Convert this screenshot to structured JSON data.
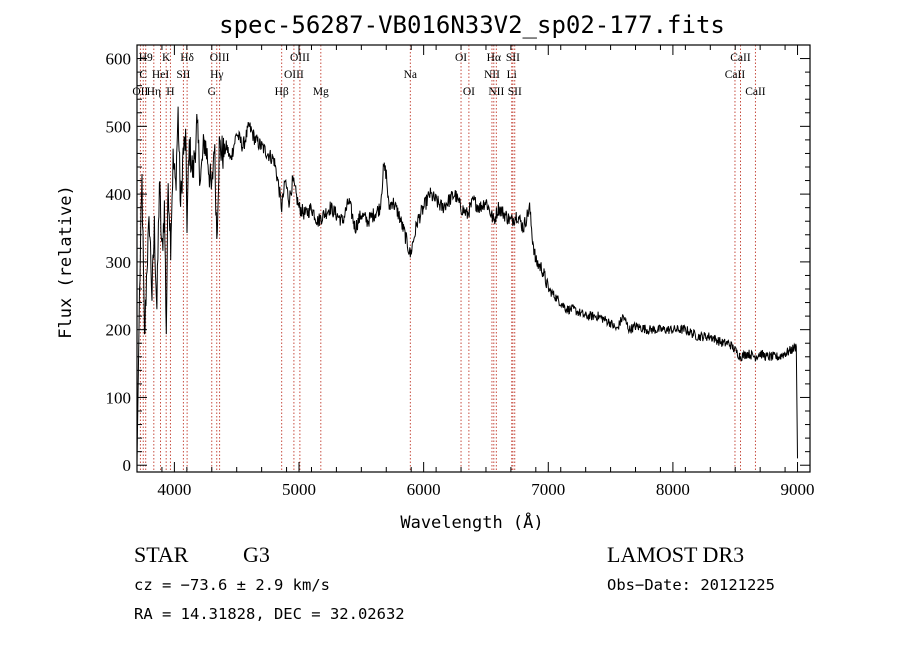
{
  "chart_data": {
    "type": "line",
    "title": "spec-56287-VB016N33V2_sp02-177.fits",
    "xlabel": "Wavelength (Å)",
    "ylabel": "Flux (relative)",
    "xlim": [
      3700,
      9100
    ],
    "ylim": [
      -10,
      620
    ],
    "x_ticks": [
      4000,
      5000,
      6000,
      7000,
      8000,
      9000
    ],
    "y_ticks": [
      0,
      100,
      200,
      300,
      400,
      500,
      600
    ],
    "spectrum": {
      "x": [
        3700,
        3720,
        3740,
        3760,
        3780,
        3800,
        3820,
        3840,
        3860,
        3880,
        3900,
        3920,
        3935,
        3950,
        3970,
        3990,
        4010,
        4030,
        4050,
        4070,
        4090,
        4101,
        4120,
        4150,
        4180,
        4210,
        4240,
        4270,
        4300,
        4320,
        4340,
        4360,
        4390,
        4420,
        4450,
        4500,
        4550,
        4600,
        4650,
        4700,
        4750,
        4800,
        4830,
        4861,
        4890,
        4920,
        4950,
        5000,
        5050,
        5100,
        5150,
        5200,
        5250,
        5300,
        5350,
        5400,
        5450,
        5500,
        5550,
        5600,
        5650,
        5680,
        5700,
        5720,
        5750,
        5800,
        5850,
        5893,
        5950,
        6000,
        6050,
        6100,
        6150,
        6200,
        6250,
        6300,
        6350,
        6400,
        6450,
        6500,
        6563,
        6600,
        6650,
        6700,
        6750,
        6800,
        6850,
        6870,
        6900,
        6950,
        7000,
        7050,
        7100,
        7150,
        7200,
        7300,
        7400,
        7500,
        7550,
        7600,
        7650,
        7700,
        7800,
        7900,
        8000,
        8100,
        8200,
        8300,
        8400,
        8450,
        8498,
        8542,
        8600,
        8662,
        8700,
        8750,
        8800,
        8850,
        8900,
        8950,
        8990,
        9000
      ],
      "y": [
        5,
        250,
        420,
        180,
        300,
        360,
        250,
        350,
        230,
        420,
        310,
        380,
        200,
        420,
        330,
        450,
        410,
        520,
        380,
        460,
        480,
        360,
        470,
        430,
        500,
        420,
        480,
        450,
        400,
        480,
        340,
        470,
        460,
        470,
        450,
        490,
        470,
        500,
        480,
        470,
        460,
        450,
        420,
        380,
        420,
        390,
        420,
        380,
        370,
        380,
        360,
        370,
        380,
        370,
        360,
        390,
        350,
        370,
        360,
        370,
        380,
        440,
        430,
        380,
        390,
        370,
        340,
        310,
        360,
        380,
        400,
        390,
        380,
        390,
        400,
        380,
        370,
        390,
        380,
        390,
        360,
        380,
        370,
        360,
        370,
        350,
        380,
        340,
        300,
        290,
        260,
        250,
        240,
        230,
        230,
        220,
        220,
        210,
        200,
        220,
        200,
        205,
        200,
        200,
        200,
        200,
        190,
        190,
        180,
        180,
        170,
        160,
        165,
        160,
        165,
        160,
        160,
        160,
        165,
        170,
        175,
        10
      ]
    },
    "line_marks": [
      {
        "wl": 3727,
        "label": "OII",
        "row": 3
      },
      {
        "wl": 3750,
        "label": "C",
        "row": 2
      },
      {
        "wl": 3770,
        "label": "H9",
        "row": 1
      },
      {
        "wl": 3835,
        "label": "Hη",
        "row": 3
      },
      {
        "wl": 3889,
        "label": "HeI",
        "row": 2
      },
      {
        "wl": 3934,
        "label": "K",
        "row": 1
      },
      {
        "wl": 3968,
        "label": "H",
        "row": 3
      },
      {
        "wl": 4072,
        "label": "SII",
        "row": 2
      },
      {
        "wl": 4102,
        "label": "Hδ",
        "row": 1
      },
      {
        "wl": 4300,
        "label": "G",
        "row": 3
      },
      {
        "wl": 4340,
        "label": "Hγ",
        "row": 2
      },
      {
        "wl": 4363,
        "label": "OIII",
        "row": 1
      },
      {
        "wl": 4861,
        "label": "Hβ",
        "row": 3
      },
      {
        "wl": 4959,
        "label": "OIII",
        "row": 2
      },
      {
        "wl": 5007,
        "label": "OIII",
        "row": 1
      },
      {
        "wl": 5175,
        "label": "Mg",
        "row": 3
      },
      {
        "wl": 5893,
        "label": "Na",
        "row": 2
      },
      {
        "wl": 6300,
        "label": "OI",
        "row": 1
      },
      {
        "wl": 6363,
        "label": "OI",
        "row": 3
      },
      {
        "wl": 6548,
        "label": "NII",
        "row": 2
      },
      {
        "wl": 6563,
        "label": "Hα",
        "row": 1
      },
      {
        "wl": 6583,
        "label": "NII",
        "row": 3
      },
      {
        "wl": 6707,
        "label": "Li",
        "row": 2
      },
      {
        "wl": 6716,
        "label": "SII",
        "row": 1
      },
      {
        "wl": 6731,
        "label": "SII",
        "row": 3
      },
      {
        "wl": 8498,
        "label": "CaII",
        "row": 2
      },
      {
        "wl": 8542,
        "label": "CaII",
        "row": 1
      },
      {
        "wl": 8662,
        "label": "CaII",
        "row": 3
      }
    ]
  },
  "info": {
    "object_class": "STAR",
    "subclass": "G3",
    "survey": "LAMOST DR3",
    "redshift": "cz = −73.6 ± 2.9 km/s",
    "obs_date": "Obs−Date: 20121225",
    "coords": "RA =  14.31828, DEC =  32.02632"
  },
  "colors": {
    "spectrum": "#000000",
    "line_marker": "#c0392b",
    "axis": "#000000",
    "background": "#ffffff"
  }
}
